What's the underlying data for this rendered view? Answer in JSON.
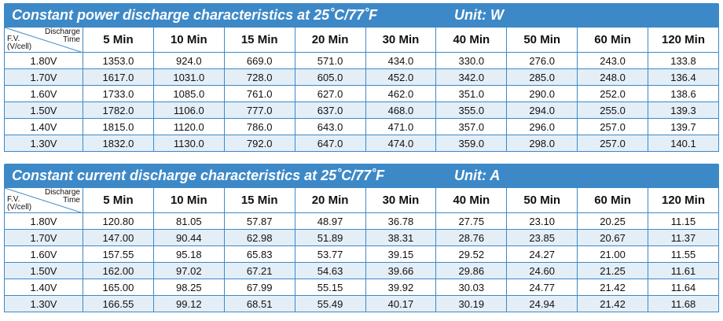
{
  "power": {
    "title": "Constant power discharge characteristics at 25˚C/77˚F",
    "unit": "Unit: W",
    "corner_top_1": "Discharge",
    "corner_top_2": "Time",
    "corner_bottom_1": "F.V.",
    "corner_bottom_2": "(V/cell)",
    "columns": [
      "5 Min",
      "10 Min",
      "15 Min",
      "20 Min",
      "30 Min",
      "40 Min",
      "50 Min",
      "60 Min",
      "120 Min"
    ],
    "rows": [
      {
        "fv": "1.80V",
        "values": [
          "1353.0",
          "924.0",
          "669.0",
          "571.0",
          "434.0",
          "330.0",
          "276.0",
          "243.0",
          "133.8"
        ]
      },
      {
        "fv": "1.70V",
        "values": [
          "1617.0",
          "1031.0",
          "728.0",
          "605.0",
          "452.0",
          "342.0",
          "285.0",
          "248.0",
          "136.4"
        ]
      },
      {
        "fv": "1.60V",
        "values": [
          "1733.0",
          "1085.0",
          "761.0",
          "627.0",
          "462.0",
          "351.0",
          "290.0",
          "252.0",
          "138.6"
        ]
      },
      {
        "fv": "1.50V",
        "values": [
          "1782.0",
          "1106.0",
          "777.0",
          "637.0",
          "468.0",
          "355.0",
          "294.0",
          "255.0",
          "139.3"
        ]
      },
      {
        "fv": "1.40V",
        "values": [
          "1815.0",
          "1120.0",
          "786.0",
          "643.0",
          "471.0",
          "357.0",
          "296.0",
          "257.0",
          "139.7"
        ]
      },
      {
        "fv": "1.30V",
        "values": [
          "1832.0",
          "1130.0",
          "792.0",
          "647.0",
          "474.0",
          "359.0",
          "298.0",
          "257.0",
          "140.1"
        ]
      }
    ]
  },
  "current": {
    "title": "Constant current discharge characteristics at 25˚C/77˚F",
    "unit": "Unit: A",
    "corner_top_1": "Discharge",
    "corner_top_2": "Time",
    "corner_bottom_1": "F.V.",
    "corner_bottom_2": "(V/cell)",
    "columns": [
      "5 Min",
      "10 Min",
      "15 Min",
      "20 Min",
      "30 Min",
      "40 Min",
      "50 Min",
      "60 Min",
      "120 Min"
    ],
    "rows": [
      {
        "fv": "1.80V",
        "values": [
          "120.80",
          "81.05",
          "57.87",
          "48.97",
          "36.78",
          "27.75",
          "23.10",
          "20.25",
          "11.15"
        ]
      },
      {
        "fv": "1.70V",
        "values": [
          "147.00",
          "90.44",
          "62.98",
          "51.89",
          "38.31",
          "28.76",
          "23.85",
          "20.67",
          "11.37"
        ]
      },
      {
        "fv": "1.60V",
        "values": [
          "157.55",
          "95.18",
          "65.83",
          "53.77",
          "39.15",
          "29.52",
          "24.27",
          "21.00",
          "11.55"
        ]
      },
      {
        "fv": "1.50V",
        "values": [
          "162.00",
          "97.02",
          "67.21",
          "54.63",
          "39.66",
          "29.86",
          "24.60",
          "21.25",
          "11.61"
        ]
      },
      {
        "fv": "1.40V",
        "values": [
          "165.00",
          "98.25",
          "67.99",
          "55.15",
          "39.92",
          "30.03",
          "24.77",
          "21.42",
          "11.64"
        ]
      },
      {
        "fv": "1.30V",
        "values": [
          "166.55",
          "99.12",
          "68.51",
          "55.49",
          "40.17",
          "30.19",
          "24.94",
          "21.42",
          "11.68"
        ]
      }
    ]
  }
}
